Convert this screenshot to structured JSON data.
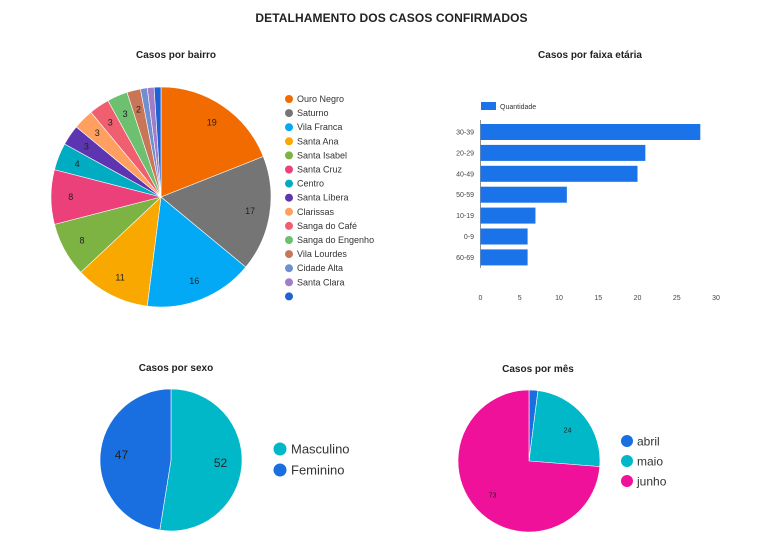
{
  "page": {
    "title": "DETALHAMENTO DOS CASOS CONFIRMADOS"
  },
  "chart_data": [
    {
      "id": "bairro",
      "type": "pie",
      "title": "Casos por bairro",
      "categories": [
        "Ouro Negro",
        "Saturno",
        "Vila Franca",
        "Santa Ana",
        "Santa Isabel",
        "Santa Cruz",
        "Centro",
        "Santa Líbera",
        "Clarissas",
        "Sanga do Café",
        "Sanga do Engenho",
        "Vila Lourdes",
        "Cidade Alta",
        "Santa Clara",
        ""
      ],
      "values": [
        19,
        17,
        16,
        11,
        8,
        8,
        4,
        3,
        3,
        3,
        3,
        2,
        1,
        1,
        1
      ],
      "data_labels": [
        "19",
        "17",
        "16",
        "11",
        "8",
        "8",
        "4",
        "3",
        "3",
        "3",
        "3",
        "2",
        "",
        "",
        ""
      ],
      "colors": [
        "#f26b00",
        "#757575",
        "#03a9f4",
        "#f9a800",
        "#7cb342",
        "#ec407a",
        "#00acc1",
        "#5e35b1",
        "#ffa060",
        "#ef5f6f",
        "#6cc070",
        "#c97658",
        "#6f8fce",
        "#a27cc9",
        "#1e62d4"
      ],
      "legend": "right"
    },
    {
      "id": "faixa",
      "type": "bar",
      "orientation": "horizontal",
      "title": "Casos por faixa etária",
      "categories": [
        "30-39",
        "20-29",
        "40-49",
        "50-59",
        "10-19",
        "0-9",
        "60-69"
      ],
      "series": [
        {
          "name": "Quantidade",
          "values": [
            28,
            21,
            20,
            11,
            7,
            6,
            6
          ],
          "color": "#1a73e8"
        }
      ],
      "xlim": [
        0,
        30
      ],
      "xticks": [
        "0",
        "5",
        "10",
        "15",
        "20",
        "25",
        "30"
      ],
      "legend": "top-left",
      "grid": false
    },
    {
      "id": "sexo",
      "type": "pie",
      "title": "Casos por sexo",
      "categories": [
        "Masculino",
        "Feminino"
      ],
      "values": [
        52,
        47
      ],
      "data_labels": [
        "52",
        "47"
      ],
      "colors": [
        "#00b8c8",
        "#1a6fe0"
      ],
      "legend": "right"
    },
    {
      "id": "mes",
      "type": "pie",
      "title": "Casos por mês",
      "categories": [
        "abril",
        "maio",
        "junho"
      ],
      "values": [
        2,
        24,
        73
      ],
      "data_labels": [
        "",
        "24",
        "73"
      ],
      "colors": [
        "#1a6fe0",
        "#00b8c8",
        "#f0119a"
      ],
      "legend": "right"
    }
  ]
}
